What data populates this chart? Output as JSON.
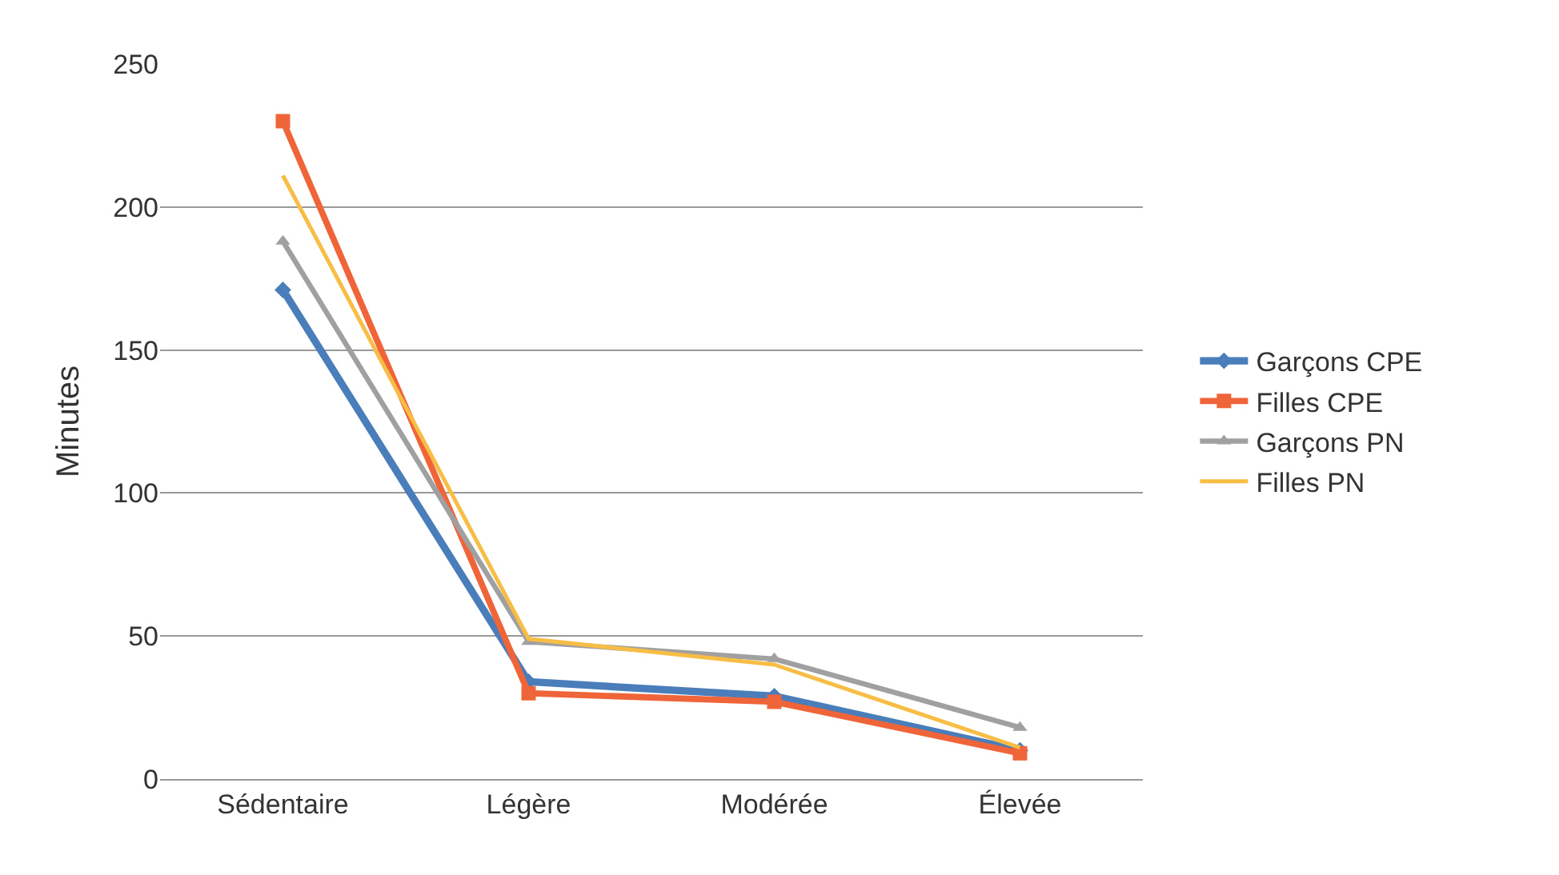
{
  "chart_data": {
    "type": "line",
    "ylabel": "Minutes",
    "categories": [
      "Sédentaire",
      "Légère",
      "Modérée",
      "Élevée"
    ],
    "series": [
      {
        "name": "Garçons CPE",
        "color": "#4a7ebb",
        "marker": "diamond",
        "values": [
          171,
          34,
          29,
          10
        ]
      },
      {
        "name": "Filles CPE",
        "color": "#f0643a",
        "marker": "square",
        "values": [
          230,
          30,
          27,
          9
        ]
      },
      {
        "name": "Garçons PN",
        "color": "#a0a0a0",
        "marker": "triangle",
        "values": [
          188,
          48,
          42,
          18
        ]
      },
      {
        "name": "Filles PN",
        "color": "#f7bd45",
        "marker": "none",
        "values": [
          211,
          49,
          40,
          11
        ]
      }
    ],
    "ylim": [
      0,
      250
    ],
    "yticks": [
      0,
      50,
      100,
      150,
      200,
      250
    ],
    "grid": "y",
    "legend": "right"
  }
}
